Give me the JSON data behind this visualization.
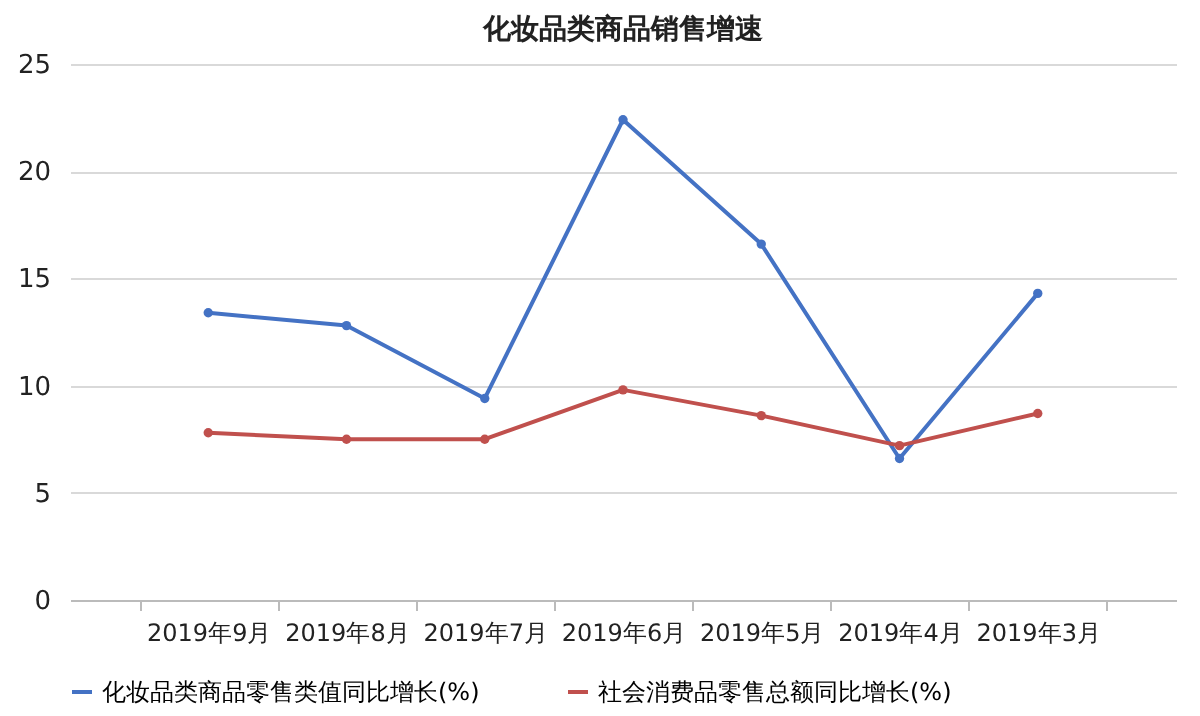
{
  "chart_data": {
    "type": "line",
    "title": "化妆品类商品销售增速",
    "categories": [
      "2019年9月",
      "2019年8月",
      "2019年7月",
      "2019年6月",
      "2019年5月",
      "2019年4月",
      "2019年3月"
    ],
    "series": [
      {
        "name": "化妆品类商品零售类值同比增长(%)",
        "color": "#4472c4",
        "values": [
          13.4,
          12.8,
          9.4,
          22.4,
          16.6,
          6.6,
          14.3
        ]
      },
      {
        "name": "社会消费品零售总额同比增长(%)",
        "color": "#c0504d",
        "values": [
          7.8,
          7.5,
          7.5,
          9.8,
          8.6,
          7.2,
          8.7
        ]
      }
    ],
    "ylim": [
      0,
      25
    ],
    "yticks": [
      0,
      5,
      10,
      15,
      20,
      25
    ],
    "grid": "y",
    "legend": "bottom",
    "marker": "circle",
    "line_style": "solid"
  }
}
